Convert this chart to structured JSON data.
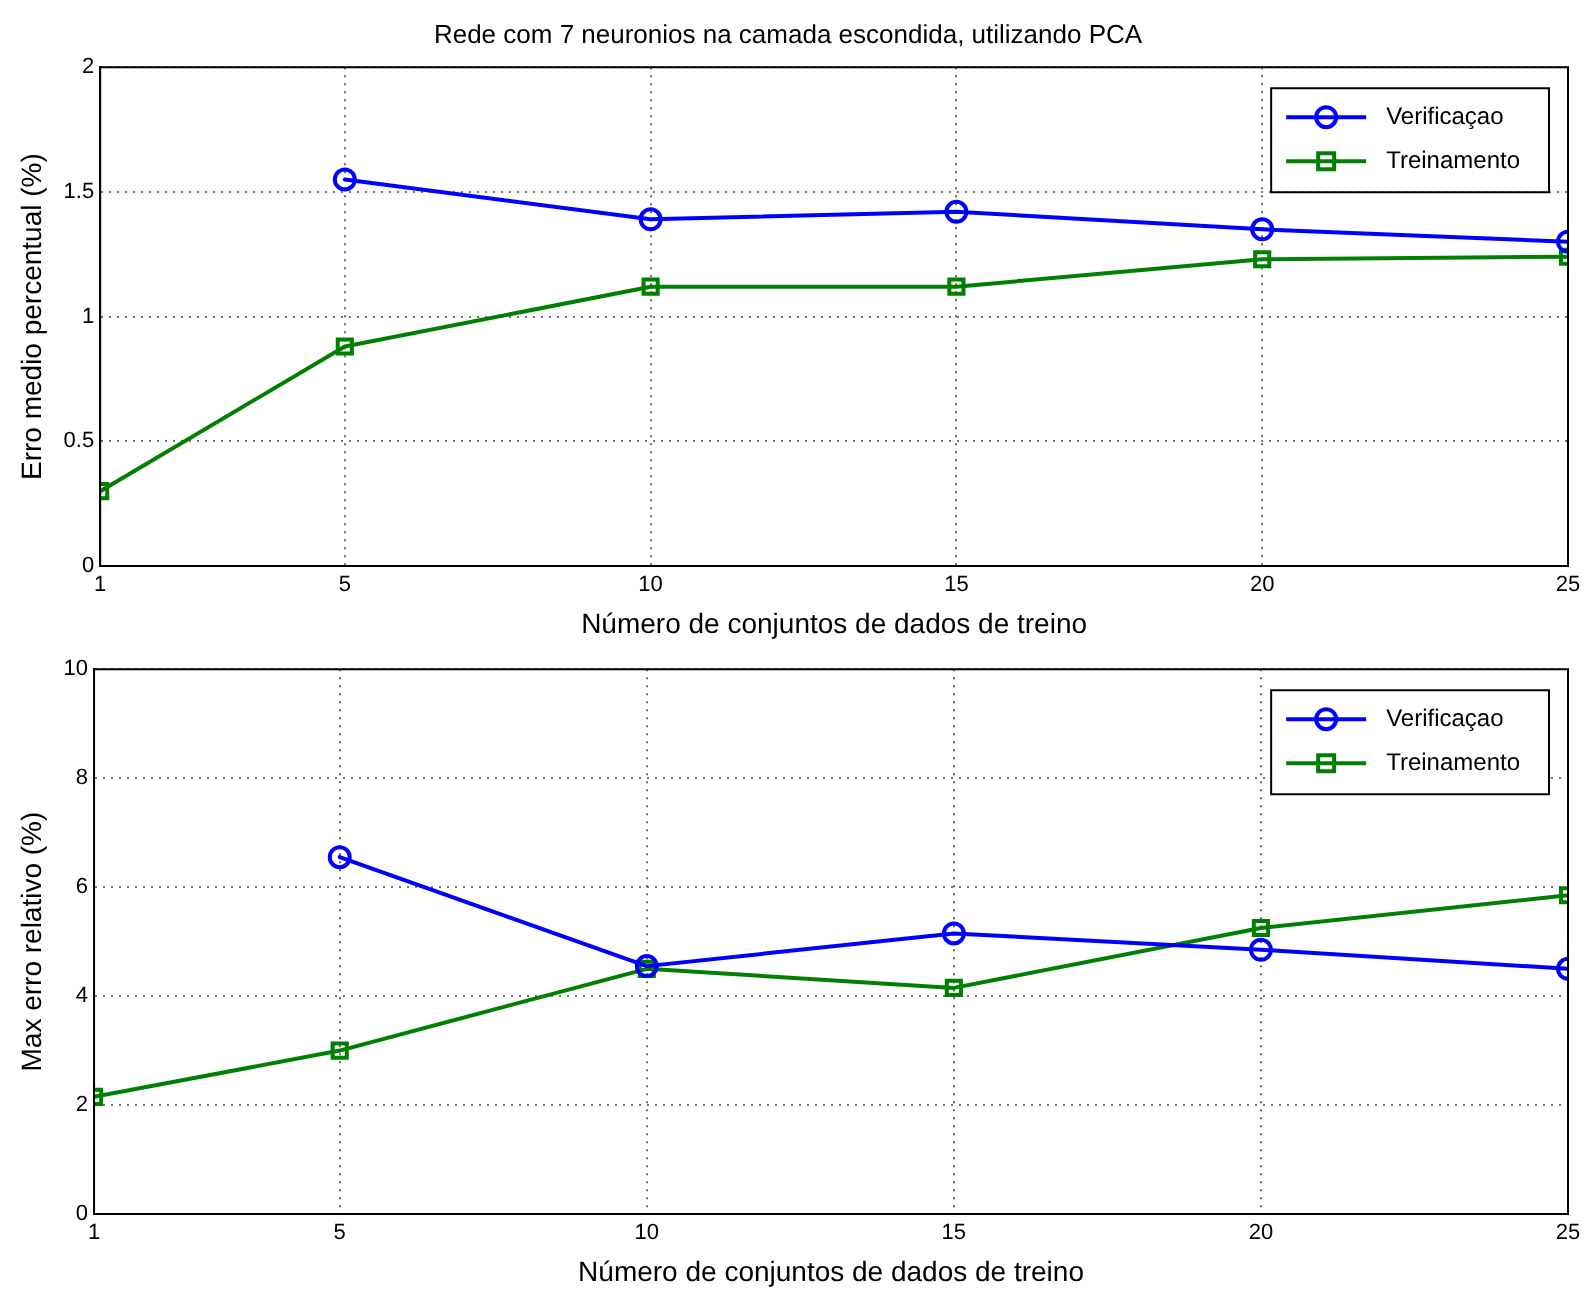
{
  "chart_data": [
    {
      "type": "line",
      "title": "Rede com 7 neuronios na camada escondida, utilizando PCA",
      "xlabel": "Número de conjuntos de dados de treino",
      "ylabel": "Erro medio percentual (%)",
      "x": [
        1,
        5,
        10,
        15,
        20,
        25
      ],
      "xlim": [
        1,
        25
      ],
      "xticks": [
        1,
        5,
        10,
        15,
        20,
        25
      ],
      "ylim": [
        0,
        2
      ],
      "yticks": [
        0,
        0.5,
        1,
        1.5,
        2
      ],
      "grid": true,
      "legend": "top right",
      "line_style": "solid",
      "series": [
        {
          "name": "Verificaçao",
          "color": "#0000ff",
          "marker": "circle",
          "values": [
            null,
            1.55,
            1.39,
            1.42,
            1.35,
            1.3
          ]
        },
        {
          "name": "Treinamento",
          "color": "#008000",
          "marker": "square",
          "values": [
            0.3,
            0.88,
            1.12,
            1.12,
            1.23,
            1.24
          ]
        }
      ]
    },
    {
      "type": "line",
      "xlabel": "Número de conjuntos de dados de treino",
      "ylabel": "Max erro relativo (%)",
      "x": [
        1,
        5,
        10,
        15,
        20,
        25
      ],
      "xlim": [
        1,
        25
      ],
      "xticks": [
        1,
        5,
        10,
        15,
        20,
        25
      ],
      "ylim": [
        0,
        10
      ],
      "yticks": [
        0,
        2,
        4,
        6,
        8,
        10
      ],
      "grid": true,
      "legend": "top right",
      "line_style": "solid",
      "series": [
        {
          "name": "Verificaçao",
          "color": "#0000ff",
          "marker": "circle",
          "values": [
            null,
            6.55,
            4.55,
            5.15,
            4.85,
            4.5
          ]
        },
        {
          "name": "Treinamento",
          "color": "#008000",
          "marker": "square",
          "values": [
            2.15,
            3.0,
            4.5,
            4.15,
            5.25,
            5.85
          ]
        }
      ]
    }
  ]
}
